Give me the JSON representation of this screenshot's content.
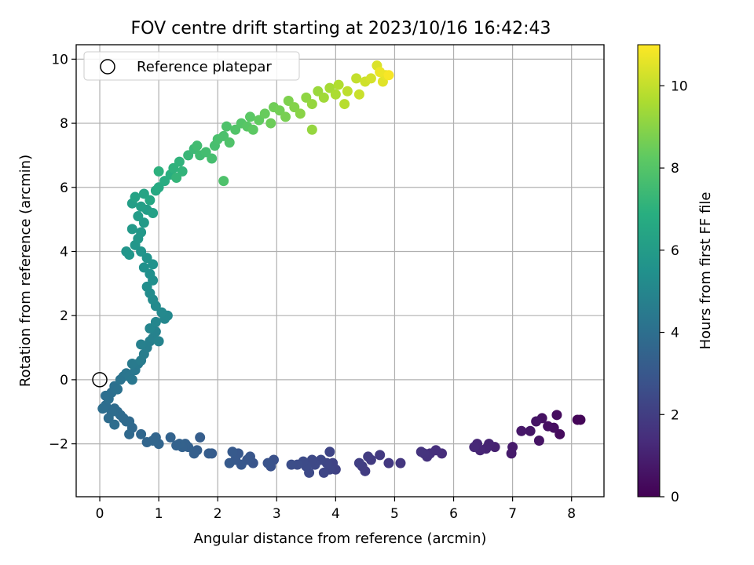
{
  "chart_data": {
    "type": "scatter",
    "title": "FOV centre drift starting at 2023/10/16 16:42:43",
    "xlabel": "Angular distance from reference (arcmin)",
    "ylabel": "Rotation from reference (arcmin)",
    "xlim": [
      -0.4,
      8.55
    ],
    "ylim": [
      -3.65,
      10.45
    ],
    "xticks": [
      "0",
      "1",
      "2",
      "3",
      "4",
      "5",
      "6",
      "7",
      "8"
    ],
    "yticks": [
      "−2",
      "0",
      "2",
      "4",
      "6",
      "8",
      "10"
    ],
    "grid": true,
    "legend": {
      "position": "top-left",
      "entries": [
        "Reference platepar"
      ]
    },
    "reference_point": {
      "x": 0,
      "y": 0
    },
    "colorbar": {
      "label": "Hours from first FF file",
      "range": [
        0,
        11
      ],
      "ticks": [
        "0",
        "2",
        "4",
        "6",
        "8",
        "10"
      ],
      "colormap": "viridis"
    },
    "points": [
      {
        "x": 8.1,
        "y": -1.25,
        "h": 0.1
      },
      {
        "x": 8.15,
        "y": -1.25,
        "h": 0.15
      },
      {
        "x": 7.8,
        "y": -1.7,
        "h": 0.3
      },
      {
        "x": 7.75,
        "y": -1.1,
        "h": 0.35
      },
      {
        "x": 7.7,
        "y": -1.5,
        "h": 0.4
      },
      {
        "x": 7.6,
        "y": -1.45,
        "h": 0.45
      },
      {
        "x": 7.5,
        "y": -1.2,
        "h": 0.5
      },
      {
        "x": 7.45,
        "y": -1.9,
        "h": 0.55
      },
      {
        "x": 7.4,
        "y": -1.3,
        "h": 0.6
      },
      {
        "x": 7.3,
        "y": -1.6,
        "h": 0.65
      },
      {
        "x": 7.15,
        "y": -1.6,
        "h": 0.7
      },
      {
        "x": 7.0,
        "y": -2.1,
        "h": 0.8
      },
      {
        "x": 6.98,
        "y": -2.3,
        "h": 0.82
      },
      {
        "x": 6.7,
        "y": -2.1,
        "h": 1.0
      },
      {
        "x": 6.6,
        "y": -2.0,
        "h": 1.05
      },
      {
        "x": 6.55,
        "y": -2.15,
        "h": 1.1
      },
      {
        "x": 6.45,
        "y": -2.2,
        "h": 1.15
      },
      {
        "x": 6.4,
        "y": -2.0,
        "h": 1.2
      },
      {
        "x": 6.35,
        "y": -2.1,
        "h": 1.25
      },
      {
        "x": 5.8,
        "y": -2.3,
        "h": 1.4
      },
      {
        "x": 5.7,
        "y": -2.2,
        "h": 1.45
      },
      {
        "x": 5.6,
        "y": -2.3,
        "h": 1.5
      },
      {
        "x": 5.55,
        "y": -2.4,
        "h": 1.55
      },
      {
        "x": 5.5,
        "y": -2.3,
        "h": 1.6
      },
      {
        "x": 5.45,
        "y": -2.25,
        "h": 1.65
      },
      {
        "x": 5.1,
        "y": -2.6,
        "h": 1.75
      },
      {
        "x": 4.9,
        "y": -2.6,
        "h": 1.8
      },
      {
        "x": 4.75,
        "y": -2.35,
        "h": 1.85
      },
      {
        "x": 4.6,
        "y": -2.5,
        "h": 1.9
      },
      {
        "x": 4.55,
        "y": -2.4,
        "h": 1.92
      },
      {
        "x": 4.5,
        "y": -2.85,
        "h": 1.95
      },
      {
        "x": 4.45,
        "y": -2.7,
        "h": 2.0
      },
      {
        "x": 4.4,
        "y": -2.6,
        "h": 2.05
      },
      {
        "x": 4.0,
        "y": -2.8,
        "h": 2.15
      },
      {
        "x": 3.95,
        "y": -2.6,
        "h": 2.2
      },
      {
        "x": 3.9,
        "y": -2.8,
        "h": 2.25
      },
      {
        "x": 3.9,
        "y": -2.25,
        "h": 2.28
      },
      {
        "x": 3.85,
        "y": -2.6,
        "h": 2.3
      },
      {
        "x": 3.8,
        "y": -2.9,
        "h": 2.32
      },
      {
        "x": 3.75,
        "y": -2.5,
        "h": 2.35
      },
      {
        "x": 3.65,
        "y": -2.65,
        "h": 2.4
      },
      {
        "x": 3.6,
        "y": -2.5,
        "h": 2.42
      },
      {
        "x": 3.55,
        "y": -2.9,
        "h": 2.45
      },
      {
        "x": 3.5,
        "y": -2.7,
        "h": 2.48
      },
      {
        "x": 3.45,
        "y": -2.55,
        "h": 2.5
      },
      {
        "x": 3.35,
        "y": -2.65,
        "h": 2.55
      },
      {
        "x": 3.25,
        "y": -2.65,
        "h": 2.6
      },
      {
        "x": 2.95,
        "y": -2.5,
        "h": 2.7
      },
      {
        "x": 2.9,
        "y": -2.7,
        "h": 2.75
      },
      {
        "x": 2.85,
        "y": -2.6,
        "h": 2.8
      },
      {
        "x": 2.6,
        "y": -2.6,
        "h": 2.9
      },
      {
        "x": 2.55,
        "y": -2.4,
        "h": 2.92
      },
      {
        "x": 2.5,
        "y": -2.5,
        "h": 2.95
      },
      {
        "x": 2.4,
        "y": -2.65,
        "h": 3.0
      },
      {
        "x": 2.35,
        "y": -2.3,
        "h": 3.02
      },
      {
        "x": 2.3,
        "y": -2.5,
        "h": 3.05
      },
      {
        "x": 2.25,
        "y": -2.25,
        "h": 3.08
      },
      {
        "x": 2.2,
        "y": -2.6,
        "h": 3.1
      },
      {
        "x": 1.9,
        "y": -2.3,
        "h": 3.2
      },
      {
        "x": 1.85,
        "y": -2.3,
        "h": 3.22
      },
      {
        "x": 1.7,
        "y": -1.8,
        "h": 3.25
      },
      {
        "x": 1.65,
        "y": -2.2,
        "h": 3.28
      },
      {
        "x": 1.6,
        "y": -2.3,
        "h": 3.3
      },
      {
        "x": 1.5,
        "y": -2.1,
        "h": 3.35
      },
      {
        "x": 1.45,
        "y": -2.0,
        "h": 3.38
      },
      {
        "x": 1.4,
        "y": -2.1,
        "h": 3.4
      },
      {
        "x": 1.35,
        "y": -2.0,
        "h": 3.42
      },
      {
        "x": 1.3,
        "y": -2.05,
        "h": 3.45
      },
      {
        "x": 1.2,
        "y": -1.8,
        "h": 3.5
      },
      {
        "x": 1.0,
        "y": -2.0,
        "h": 3.55
      },
      {
        "x": 0.95,
        "y": -1.8,
        "h": 3.58
      },
      {
        "x": 0.9,
        "y": -1.9,
        "h": 3.6
      },
      {
        "x": 0.8,
        "y": -1.95,
        "h": 3.62
      },
      {
        "x": 0.7,
        "y": -1.7,
        "h": 3.65
      },
      {
        "x": 0.55,
        "y": -1.5,
        "h": 3.7
      },
      {
        "x": 0.5,
        "y": -1.3,
        "h": 3.72
      },
      {
        "x": 0.5,
        "y": -1.7,
        "h": 3.74
      },
      {
        "x": 0.45,
        "y": -1.3,
        "h": 3.76
      },
      {
        "x": 0.4,
        "y": -1.2,
        "h": 3.78
      },
      {
        "x": 0.35,
        "y": -1.1,
        "h": 3.8
      },
      {
        "x": 0.3,
        "y": -1.0,
        "h": 3.82
      },
      {
        "x": 0.25,
        "y": -0.9,
        "h": 3.84
      },
      {
        "x": 0.2,
        "y": -1.0,
        "h": 3.86
      },
      {
        "x": 0.15,
        "y": -1.2,
        "h": 3.88
      },
      {
        "x": 0.25,
        "y": -1.4,
        "h": 3.9
      },
      {
        "x": 0.1,
        "y": -0.8,
        "h": 3.92
      },
      {
        "x": 0.05,
        "y": -0.9,
        "h": 3.94
      },
      {
        "x": 0.1,
        "y": -0.5,
        "h": 3.96
      },
      {
        "x": 0.15,
        "y": -0.6,
        "h": 3.98
      },
      {
        "x": 0.2,
        "y": -0.4,
        "h": 4.0
      },
      {
        "x": 0.25,
        "y": -0.2,
        "h": 4.05
      },
      {
        "x": 0.3,
        "y": -0.3,
        "h": 4.1
      },
      {
        "x": 0.35,
        "y": 0.0,
        "h": 4.15
      },
      {
        "x": 0.4,
        "y": 0.1,
        "h": 4.2
      },
      {
        "x": 0.45,
        "y": 0.2,
        "h": 4.25
      },
      {
        "x": 0.5,
        "y": 0.1,
        "h": 4.3
      },
      {
        "x": 0.55,
        "y": 0.0,
        "h": 4.35
      },
      {
        "x": 0.6,
        "y": 0.3,
        "h": 4.4
      },
      {
        "x": 0.65,
        "y": 0.5,
        "h": 4.45
      },
      {
        "x": 0.55,
        "y": 0.5,
        "h": 4.5
      },
      {
        "x": 0.7,
        "y": 0.6,
        "h": 4.55
      },
      {
        "x": 0.75,
        "y": 0.8,
        "h": 4.6
      },
      {
        "x": 0.8,
        "y": 1.0,
        "h": 4.65
      },
      {
        "x": 0.85,
        "y": 1.2,
        "h": 4.7
      },
      {
        "x": 0.7,
        "y": 1.1,
        "h": 4.75
      },
      {
        "x": 0.9,
        "y": 1.3,
        "h": 4.8
      },
      {
        "x": 0.95,
        "y": 1.5,
        "h": 4.85
      },
      {
        "x": 1.0,
        "y": 1.2,
        "h": 4.9
      },
      {
        "x": 0.85,
        "y": 1.6,
        "h": 4.95
      },
      {
        "x": 0.95,
        "y": 1.8,
        "h": 5.0
      },
      {
        "x": 1.1,
        "y": 1.9,
        "h": 5.05
      },
      {
        "x": 1.15,
        "y": 2.0,
        "h": 5.1
      },
      {
        "x": 1.05,
        "y": 2.1,
        "h": 5.15
      },
      {
        "x": 0.95,
        "y": 2.3,
        "h": 5.2
      },
      {
        "x": 0.9,
        "y": 2.5,
        "h": 5.25
      },
      {
        "x": 0.85,
        "y": 2.7,
        "h": 5.3
      },
      {
        "x": 0.8,
        "y": 2.9,
        "h": 5.35
      },
      {
        "x": 0.9,
        "y": 3.1,
        "h": 5.4
      },
      {
        "x": 0.85,
        "y": 3.3,
        "h": 5.45
      },
      {
        "x": 0.75,
        "y": 3.5,
        "h": 5.5
      },
      {
        "x": 0.9,
        "y": 3.6,
        "h": 5.55
      },
      {
        "x": 0.8,
        "y": 3.8,
        "h": 5.6
      },
      {
        "x": 0.7,
        "y": 4.0,
        "h": 5.65
      },
      {
        "x": 0.45,
        "y": 4.0,
        "h": 5.7
      },
      {
        "x": 0.5,
        "y": 3.9,
        "h": 5.72
      },
      {
        "x": 0.6,
        "y": 4.2,
        "h": 5.75
      },
      {
        "x": 0.65,
        "y": 4.4,
        "h": 5.8
      },
      {
        "x": 0.7,
        "y": 4.6,
        "h": 5.85
      },
      {
        "x": 0.55,
        "y": 4.7,
        "h": 5.9
      },
      {
        "x": 0.75,
        "y": 4.9,
        "h": 5.95
      },
      {
        "x": 0.65,
        "y": 5.1,
        "h": 6.0
      },
      {
        "x": 0.8,
        "y": 5.3,
        "h": 6.05
      },
      {
        "x": 0.55,
        "y": 5.5,
        "h": 6.1
      },
      {
        "x": 0.7,
        "y": 5.4,
        "h": 6.15
      },
      {
        "x": 0.9,
        "y": 5.2,
        "h": 6.2
      },
      {
        "x": 0.6,
        "y": 5.7,
        "h": 6.3
      },
      {
        "x": 0.75,
        "y": 5.8,
        "h": 6.4
      },
      {
        "x": 0.85,
        "y": 5.6,
        "h": 6.5
      },
      {
        "x": 0.95,
        "y": 5.9,
        "h": 6.6
      },
      {
        "x": 1.0,
        "y": 6.0,
        "h": 6.7
      },
      {
        "x": 1.1,
        "y": 6.2,
        "h": 6.8
      },
      {
        "x": 1.2,
        "y": 6.4,
        "h": 6.9
      },
      {
        "x": 1.0,
        "y": 6.5,
        "h": 7.0
      },
      {
        "x": 1.25,
        "y": 6.6,
        "h": 7.05
      },
      {
        "x": 1.35,
        "y": 6.8,
        "h": 7.1
      },
      {
        "x": 1.4,
        "y": 6.5,
        "h": 7.15
      },
      {
        "x": 1.3,
        "y": 6.3,
        "h": 7.2
      },
      {
        "x": 1.5,
        "y": 7.0,
        "h": 7.3
      },
      {
        "x": 1.6,
        "y": 7.2,
        "h": 7.4
      },
      {
        "x": 1.7,
        "y": 7.0,
        "h": 7.5
      },
      {
        "x": 1.65,
        "y": 7.3,
        "h": 7.55
      },
      {
        "x": 1.8,
        "y": 7.1,
        "h": 7.6
      },
      {
        "x": 1.9,
        "y": 6.9,
        "h": 7.65
      },
      {
        "x": 1.95,
        "y": 7.3,
        "h": 7.7
      },
      {
        "x": 2.0,
        "y": 7.5,
        "h": 7.75
      },
      {
        "x": 2.1,
        "y": 7.6,
        "h": 7.8
      },
      {
        "x": 2.15,
        "y": 7.9,
        "h": 7.85
      },
      {
        "x": 2.1,
        "y": 6.2,
        "h": 7.85
      },
      {
        "x": 2.2,
        "y": 7.4,
        "h": 7.9
      },
      {
        "x": 2.3,
        "y": 7.8,
        "h": 7.95
      },
      {
        "x": 2.4,
        "y": 8.0,
        "h": 8.0
      },
      {
        "x": 2.5,
        "y": 7.9,
        "h": 8.1
      },
      {
        "x": 2.55,
        "y": 8.2,
        "h": 8.15
      },
      {
        "x": 2.6,
        "y": 7.8,
        "h": 8.2
      },
      {
        "x": 2.7,
        "y": 8.1,
        "h": 8.3
      },
      {
        "x": 2.8,
        "y": 8.3,
        "h": 8.4
      },
      {
        "x": 2.9,
        "y": 8.0,
        "h": 8.5
      },
      {
        "x": 2.95,
        "y": 8.5,
        "h": 8.55
      },
      {
        "x": 3.05,
        "y": 8.4,
        "h": 8.6
      },
      {
        "x": 3.15,
        "y": 8.2,
        "h": 8.7
      },
      {
        "x": 3.2,
        "y": 8.7,
        "h": 8.8
      },
      {
        "x": 3.3,
        "y": 8.5,
        "h": 8.9
      },
      {
        "x": 3.4,
        "y": 8.3,
        "h": 9.0
      },
      {
        "x": 3.5,
        "y": 8.8,
        "h": 9.1
      },
      {
        "x": 3.6,
        "y": 8.6,
        "h": 9.2
      },
      {
        "x": 3.6,
        "y": 7.8,
        "h": 9.2
      },
      {
        "x": 3.7,
        "y": 9.0,
        "h": 9.3
      },
      {
        "x": 3.8,
        "y": 8.8,
        "h": 9.4
      },
      {
        "x": 3.9,
        "y": 9.1,
        "h": 9.5
      },
      {
        "x": 4.0,
        "y": 8.9,
        "h": 9.6
      },
      {
        "x": 4.05,
        "y": 9.2,
        "h": 9.7
      },
      {
        "x": 4.15,
        "y": 8.6,
        "h": 9.8
      },
      {
        "x": 4.2,
        "y": 9.0,
        "h": 9.9
      },
      {
        "x": 4.35,
        "y": 9.4,
        "h": 10.0
      },
      {
        "x": 4.4,
        "y": 8.9,
        "h": 10.1
      },
      {
        "x": 4.5,
        "y": 9.3,
        "h": 10.2
      },
      {
        "x": 4.6,
        "y": 9.4,
        "h": 10.3
      },
      {
        "x": 4.7,
        "y": 9.8,
        "h": 10.4
      },
      {
        "x": 4.8,
        "y": 9.3,
        "h": 10.5
      },
      {
        "x": 4.85,
        "y": 9.5,
        "h": 10.6
      },
      {
        "x": 4.75,
        "y": 9.6,
        "h": 10.7
      },
      {
        "x": 4.9,
        "y": 9.5,
        "h": 10.9
      }
    ]
  }
}
